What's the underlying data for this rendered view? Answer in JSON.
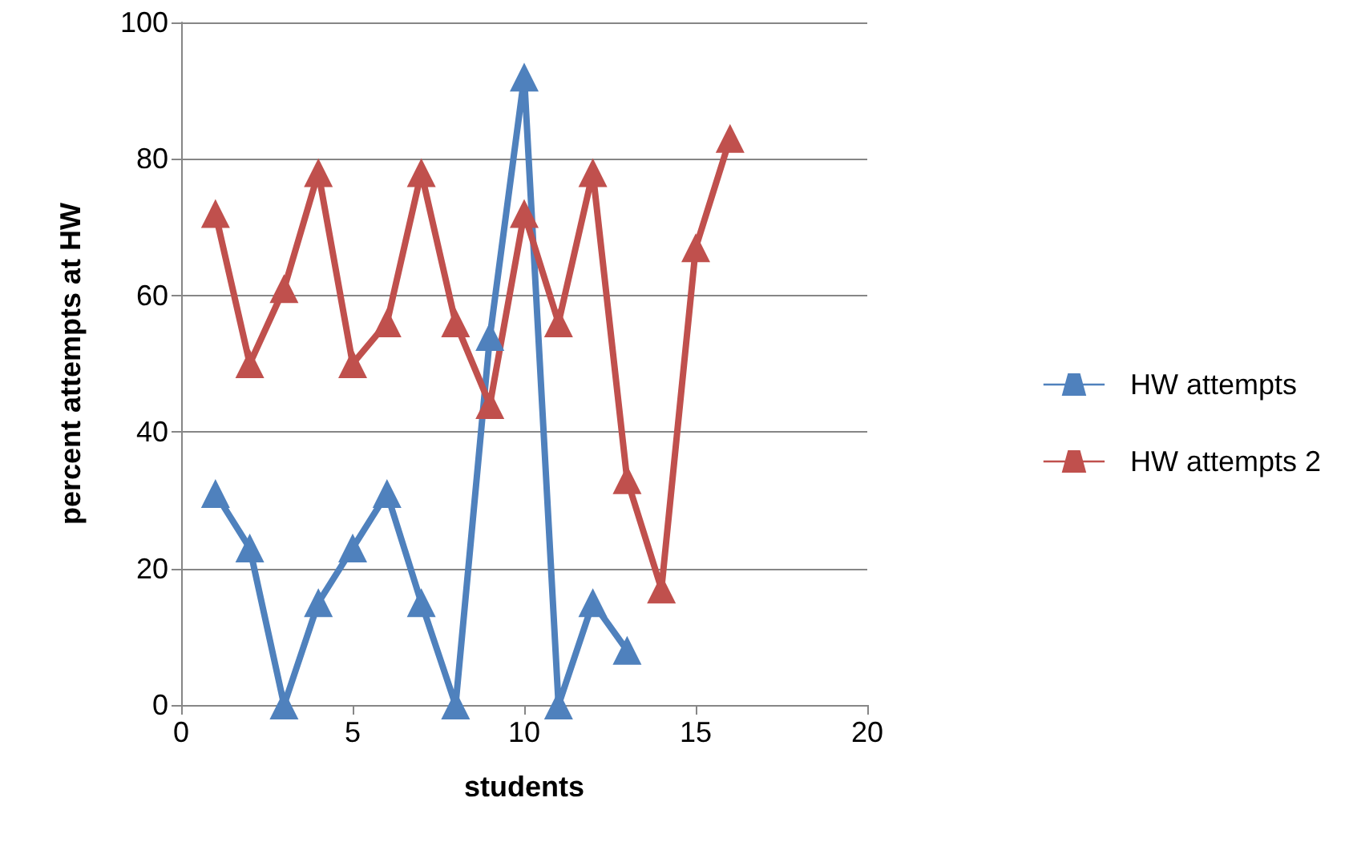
{
  "chart_data": {
    "type": "line",
    "xlabel": "students",
    "ylabel": "percent attempts at HW",
    "series": [
      {
        "name": "HW attempts",
        "color": "#4f81bd",
        "x": [
          1,
          2,
          3,
          4,
          5,
          6,
          7,
          8,
          9,
          10,
          11,
          12,
          13
        ],
        "values": [
          31,
          23,
          0,
          15,
          23,
          31,
          15,
          0,
          54,
          92,
          0,
          15,
          8
        ]
      },
      {
        "name": "HW attempts 2",
        "color": "#c0504d",
        "x": [
          1,
          2,
          3,
          4,
          5,
          6,
          7,
          8,
          9,
          10,
          11,
          12,
          13,
          14,
          15,
          16
        ],
        "values": [
          72,
          50,
          61,
          78,
          50,
          56,
          78,
          56,
          44,
          72,
          56,
          78,
          33,
          17,
          67,
          83
        ]
      }
    ],
    "xlim": [
      0,
      20
    ],
    "xticks": [
      0,
      5,
      10,
      15,
      20
    ],
    "ylim": [
      0,
      100
    ],
    "yticks": [
      0,
      20,
      40,
      60,
      80,
      100
    ],
    "grid": "y",
    "legend": "right",
    "marker": "triangle",
    "line_style": "solid"
  }
}
